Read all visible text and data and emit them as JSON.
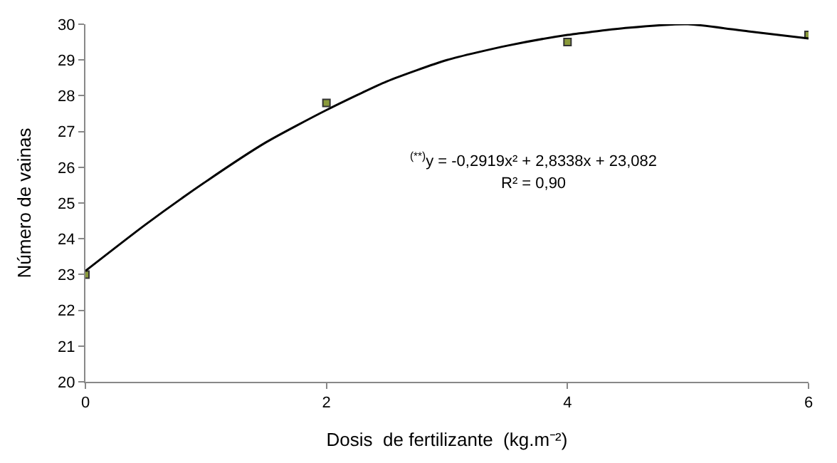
{
  "chart_data": {
    "type": "scatter",
    "xlabel": "Dosis  de fertilizante  (kg.m⁻²)",
    "ylabel": "Número de vainas",
    "x": [
      0,
      2,
      4,
      6
    ],
    "series": [
      {
        "color": "#8a9a3a",
        "marker": "square",
        "values": [
          23.0,
          27.8,
          29.5,
          29.7
        ]
      },
      {
        "type": "line",
        "color": "#000000",
        "marker": "none",
        "line_style": "solid",
        "x": [
          0,
          0.5,
          1,
          1.5,
          2,
          2.5,
          3,
          3.5,
          4,
          4.5,
          5,
          5.5,
          6
        ],
        "values": [
          23.1,
          24.4,
          25.6,
          26.7,
          27.6,
          28.4,
          29.0,
          29.4,
          29.7,
          29.9,
          30.0,
          29.8,
          29.6
        ]
      }
    ],
    "annotations": [
      "$^{(**)}$y = -0,2919x² + 2,8338x + 23,082",
      "R² = 0,90"
    ],
    "xlim": [
      0,
      6
    ],
    "xticks": [
      0,
      2,
      4,
      6
    ],
    "ylim": [
      20,
      30
    ],
    "yticks": [
      20,
      21,
      22,
      23,
      24,
      25,
      26,
      27,
      28,
      29,
      30
    ]
  }
}
